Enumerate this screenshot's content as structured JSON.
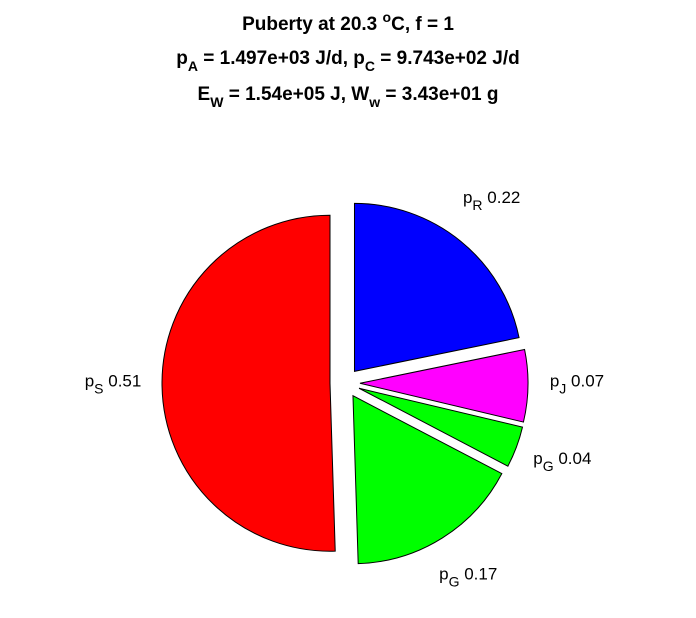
{
  "chart_data": {
    "type": "pie",
    "title": [
      [
        "Puberty at 20.3 ",
        "o",
        "C, f = 1"
      ],
      [
        "p",
        "A",
        " = 1.497e+03 J/d,  p",
        "C",
        " = 9.743e+02 J/d"
      ],
      [
        "E",
        "W",
        " = 1.54e+05 J, W",
        "w",
        " = 3.43e+01 g"
      ]
    ],
    "categories": [
      [
        "p",
        "R"
      ],
      [
        "p",
        "J"
      ],
      [
        "p",
        "G"
      ],
      [
        "p",
        "G"
      ],
      [
        "p",
        "S"
      ]
    ],
    "values": [
      0.22,
      0.07,
      0.04,
      0.17,
      0.51
    ],
    "colors": [
      "#0000ff",
      "#ff00ff",
      "#00ff00",
      "#00ff00",
      "#ff0000"
    ],
    "explode": true
  }
}
